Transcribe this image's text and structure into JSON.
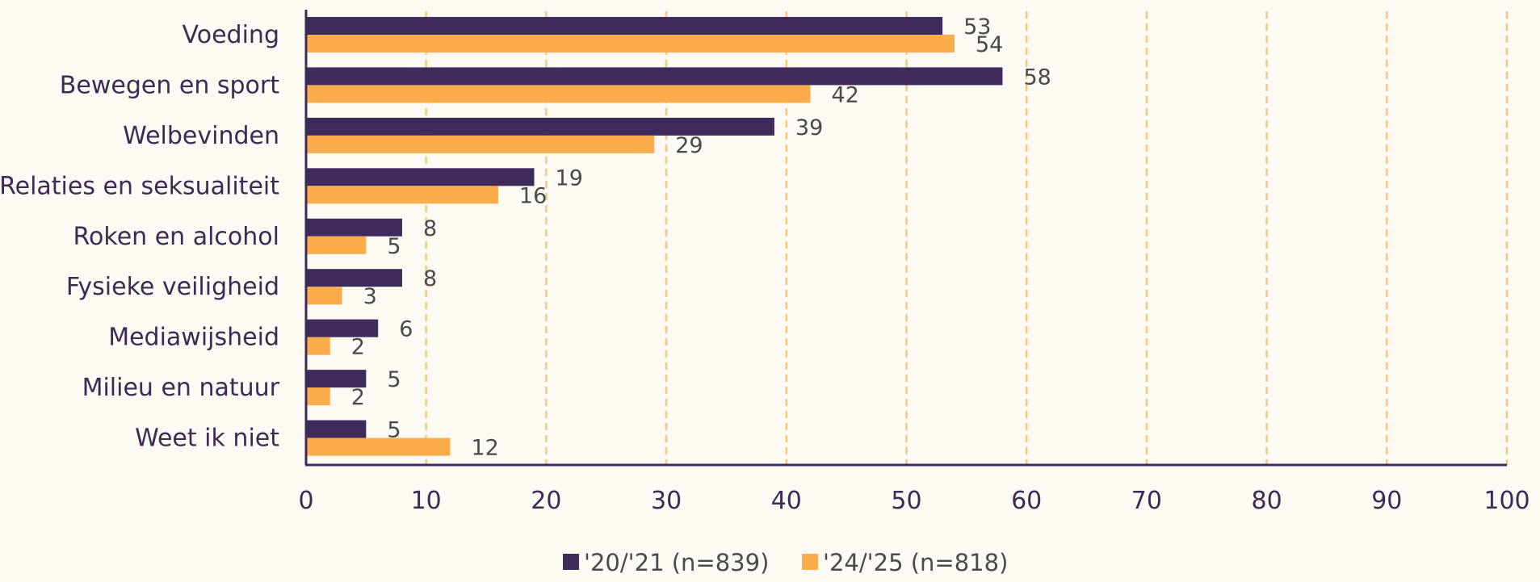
{
  "chart_data": {
    "type": "bar",
    "orientation": "horizontal",
    "categories": [
      "Voeding",
      "Bewegen en sport",
      "Welbevinden",
      "Relaties en seksualiteit",
      "Roken en alcohol",
      "Fysieke veiligheid",
      "Mediawijsheid",
      "Milieu en natuur",
      "Weet ik niet"
    ],
    "series": [
      {
        "name": "'20/'21 (n=839)",
        "color": "#3f2b5b",
        "values": [
          53,
          58,
          39,
          19,
          8,
          8,
          6,
          5,
          5
        ]
      },
      {
        "name": "'24/'25 (n=818)",
        "color": "#fbac4b",
        "values": [
          54,
          42,
          29,
          16,
          5,
          3,
          2,
          2,
          12
        ]
      }
    ],
    "title": "",
    "xlabel": "",
    "ylabel": "",
    "xlim": [
      0,
      100
    ],
    "xticks": [
      "0",
      "10",
      "20",
      "30",
      "40",
      "50",
      "60",
      "70",
      "80",
      "90",
      "100"
    ],
    "grid": "vertical dashed",
    "grid_color": "#f6c87c",
    "legend_position": "bottom-center"
  }
}
